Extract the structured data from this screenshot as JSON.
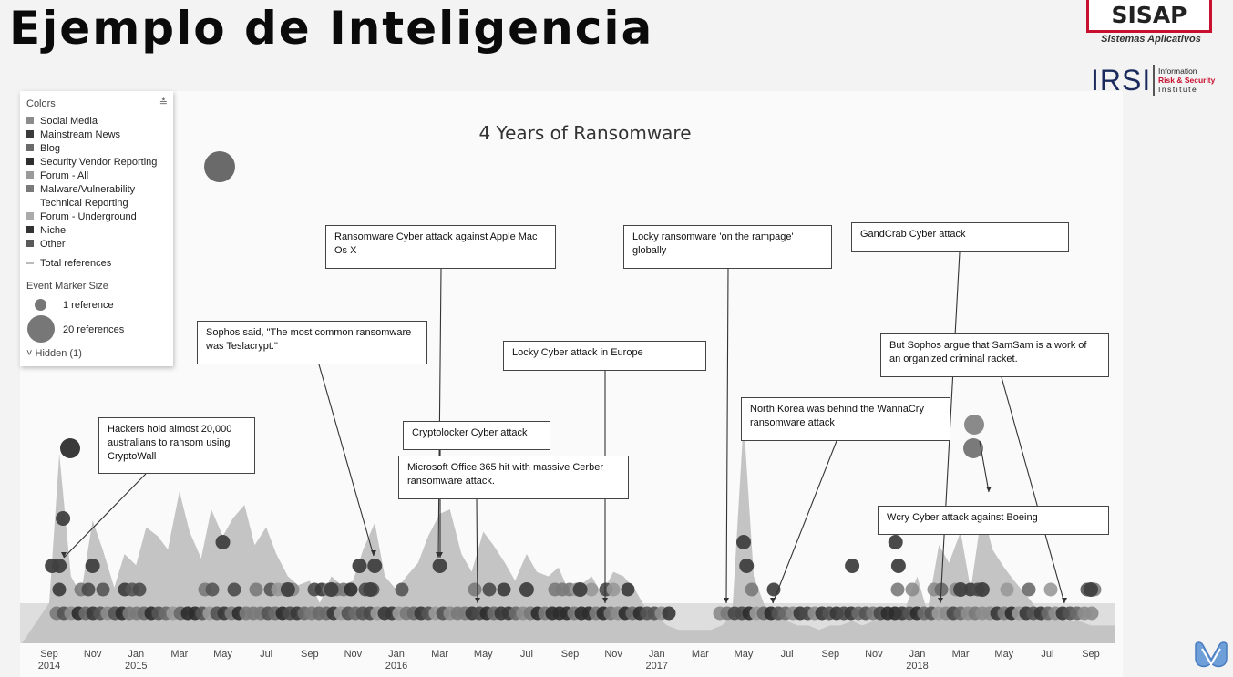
{
  "slide_title": "Ejemplo de Inteligencia",
  "logos": {
    "sisap_name": "SISAP",
    "sisap_tagline": "Sistemas Aplicativos",
    "irsi_name": "IRSI",
    "irsi_line1": "Information",
    "irsi_line2": "Risk & Security",
    "irsi_line3": "Institute"
  },
  "legend": {
    "header": "Colors",
    "items": [
      {
        "label": "Social Media",
        "color": "#8c8c8c"
      },
      {
        "label": "Mainstream News",
        "color": "#3a3a3a"
      },
      {
        "label": "Blog",
        "color": "#6a6a6a"
      },
      {
        "label": "Security Vendor Reporting",
        "color": "#2e2e2e"
      },
      {
        "label": "Forum - All",
        "color": "#9a9a9a"
      },
      {
        "label": "Malware/Vulnerability",
        "color": "#7a7a7a"
      },
      {
        "label": "Technical Reporting",
        "color": ""
      },
      {
        "label": "Forum - Underground",
        "color": "#aaaaaa"
      },
      {
        "label": "Niche",
        "color": "#333333"
      },
      {
        "label": "Other",
        "color": "#5a5a5a"
      }
    ],
    "total_label": "Total references",
    "marker_size_label": "Event Marker Size",
    "marker_small_label": "1 reference",
    "marker_large_label": "20 references",
    "hidden_label": "Hidden (1)"
  },
  "chart_data": {
    "type": "area",
    "title": "4 Years of Ransomware",
    "xlabel": "",
    "ylabel": "",
    "grid": false,
    "x_range": [
      "2014-09",
      "2018-09"
    ],
    "x_ticks": [
      {
        "label": "Sep",
        "year": "2014",
        "x": "2014-09"
      },
      {
        "label": "Nov",
        "year": "",
        "x": "2014-11"
      },
      {
        "label": "Jan",
        "year": "2015",
        "x": "2015-01"
      },
      {
        "label": "Mar",
        "year": "",
        "x": "2015-03"
      },
      {
        "label": "May",
        "year": "",
        "x": "2015-05"
      },
      {
        "label": "Jul",
        "year": "",
        "x": "2015-07"
      },
      {
        "label": "Sep",
        "year": "",
        "x": "2015-09"
      },
      {
        "label": "Nov",
        "year": "",
        "x": "2015-11"
      },
      {
        "label": "Jan",
        "year": "2016",
        "x": "2016-01"
      },
      {
        "label": "Mar",
        "year": "",
        "x": "2016-03"
      },
      {
        "label": "May",
        "year": "",
        "x": "2016-05"
      },
      {
        "label": "Jul",
        "year": "",
        "x": "2016-07"
      },
      {
        "label": "Sep",
        "year": "",
        "x": "2016-09"
      },
      {
        "label": "Nov",
        "year": "",
        "x": "2016-11"
      },
      {
        "label": "Jan",
        "year": "2017",
        "x": "2017-01"
      },
      {
        "label": "Mar",
        "year": "",
        "x": "2017-03"
      },
      {
        "label": "May",
        "year": "",
        "x": "2017-05"
      },
      {
        "label": "Jul",
        "year": "",
        "x": "2017-07"
      },
      {
        "label": "Sep",
        "year": "",
        "x": "2017-09"
      },
      {
        "label": "Nov",
        "year": "",
        "x": "2017-11"
      },
      {
        "label": "Jan",
        "year": "2018",
        "x": "2018-01"
      },
      {
        "label": "Mar",
        "year": "",
        "x": "2018-03"
      },
      {
        "label": "May",
        "year": "",
        "x": "2018-05"
      },
      {
        "label": "Jul",
        "year": "",
        "x": "2018-07"
      },
      {
        "label": "Sep",
        "year": "",
        "x": "2018-09"
      }
    ],
    "series": [
      {
        "name": "Total references",
        "color": "#c4c4c4",
        "x": [
          "2014-09",
          "2014-09-15",
          "2014-10",
          "2014-10-15",
          "2014-11",
          "2014-11-15",
          "2014-12",
          "2014-12-15",
          "2015-01",
          "2015-01-15",
          "2015-02",
          "2015-02-15",
          "2015-03",
          "2015-03-15",
          "2015-04",
          "2015-04-15",
          "2015-05",
          "2015-05-15",
          "2015-06",
          "2015-06-15",
          "2015-07",
          "2015-07-15",
          "2015-08",
          "2015-08-15",
          "2015-09",
          "2015-09-15",
          "2015-10",
          "2015-10-15",
          "2015-11",
          "2015-11-15",
          "2015-12",
          "2015-12-15",
          "2016-01",
          "2016-01-15",
          "2016-02",
          "2016-02-15",
          "2016-03",
          "2016-03-15",
          "2016-04",
          "2016-04-15",
          "2016-05",
          "2016-05-15",
          "2016-06",
          "2016-06-15",
          "2016-07",
          "2016-07-15",
          "2016-08",
          "2016-08-15",
          "2016-09",
          "2016-09-15",
          "2016-10",
          "2016-10-15",
          "2016-11",
          "2016-11-15",
          "2016-12",
          "2016-12-15",
          "2017-01",
          "2017-01-15",
          "2017-02",
          "2017-02-15",
          "2017-03",
          "2017-03-15",
          "2017-04",
          "2017-04-15",
          "2017-05",
          "2017-05-15",
          "2017-06",
          "2017-06-15",
          "2017-07",
          "2017-07-15",
          "2017-08",
          "2017-08-15",
          "2017-09",
          "2017-09-15",
          "2017-10",
          "2017-10-15",
          "2017-11",
          "2017-11-15",
          "2017-12",
          "2017-12-15",
          "2018-01",
          "2018-01-15",
          "2018-02",
          "2018-02-15",
          "2018-03",
          "2018-03-15",
          "2018-04",
          "2018-04-15",
          "2018-05",
          "2018-05-15",
          "2018-06",
          "2018-06-15",
          "2018-07",
          "2018-07-15",
          "2018-08",
          "2018-08-15",
          "2018-09"
        ],
        "values": [
          18,
          85,
          30,
          22,
          55,
          42,
          25,
          40,
          35,
          52,
          48,
          42,
          68,
          50,
          38,
          60,
          48,
          56,
          62,
          44,
          52,
          40,
          30,
          26,
          28,
          18,
          30,
          26,
          28,
          42,
          54,
          30,
          24,
          30,
          36,
          48,
          58,
          60,
          40,
          32,
          50,
          44,
          36,
          28,
          40,
          32,
          30,
          34,
          22,
          26,
          30,
          22,
          32,
          30,
          24,
          16,
          12,
          8,
          6,
          6,
          6,
          6,
          8,
          12,
          100,
          30,
          16,
          12,
          10,
          8,
          8,
          6,
          8,
          8,
          10,
          8,
          10,
          12,
          14,
          16,
          30,
          14,
          44,
          36,
          50,
          24,
          60,
          42,
          34,
          28,
          22,
          16,
          14,
          12,
          10,
          10,
          8
        ]
      }
    ],
    "event_markers": [
      {
        "x": "2014-09-20",
        "row": 4
      },
      {
        "x": "2014-09-05",
        "row": 2
      },
      {
        "x": "2014-09-15",
        "row": 2
      },
      {
        "x": "2014-11",
        "row": 2
      },
      {
        "x": "2015-05",
        "row": 3
      },
      {
        "x": "2015-08",
        "row": 1
      },
      {
        "x": "2015-10",
        "row": 1
      },
      {
        "x": "2015-11-10",
        "row": 2
      },
      {
        "x": "2015-11-25",
        "row": 1
      },
      {
        "x": "2015-12",
        "row": 2
      },
      {
        "x": "2016-03",
        "row": 2
      },
      {
        "x": "2016-07",
        "row": 1
      },
      {
        "x": "2016-09-15",
        "row": 1
      },
      {
        "x": "2017-05",
        "row": 3
      },
      {
        "x": "2017-05-05",
        "row": 2
      },
      {
        "x": "2017-10",
        "row": 2
      },
      {
        "x": "2017-12",
        "row": 3
      },
      {
        "x": "2017-12-05",
        "row": 2
      },
      {
        "x": "2018-03",
        "row": 1
      },
      {
        "x": "2018-03-15",
        "row": 4
      },
      {
        "x": "2018-04",
        "row": 1
      },
      {
        "x": "2018-09",
        "row": 1
      }
    ],
    "large_markers": [
      {
        "x": "2015-05",
        "size": "large"
      },
      {
        "x": "2018-03-15",
        "size": "large"
      }
    ],
    "annotations": [
      {
        "text": "Hackers hold almost 20,000 australians to ransom using CryptoWall",
        "event_x": "2014-09-15"
      },
      {
        "text": "Sophos said, \"The most common ransomware was Teslacrypt.\"",
        "event_x": "2015-12"
      },
      {
        "text": "Ransomware Cyber attack against Apple Mac Os X",
        "event_x": "2016-03"
      },
      {
        "text": "Cryptolocker Cyber attack",
        "event_x": "2016-03"
      },
      {
        "text": "Microsoft Office 365 hit with massive Cerber ransomware attack.",
        "event_x": "2016-05"
      },
      {
        "text": "Locky Cyber attack in Europe",
        "event_x": "2016-07"
      },
      {
        "text": "Locky ransomware 'on the rampage' globally",
        "event_x": "2016-11"
      },
      {
        "text": "North Korea was behind the WannaCry ransomware attack",
        "event_x": "2017-07"
      },
      {
        "text": "GandCrab Cyber attack",
        "event_x": "2018-02"
      },
      {
        "text": "But Sophos argue that SamSam is a work of an organized criminal racket.",
        "event_x": "2018-07"
      },
      {
        "text": "Wcry Cyber attack against Boeing",
        "event_x": "2018-03"
      }
    ]
  }
}
